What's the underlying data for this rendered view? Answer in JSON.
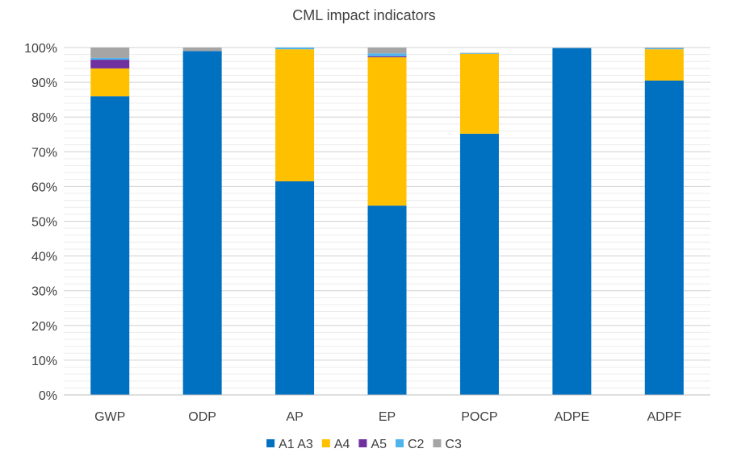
{
  "chart_data": {
    "type": "bar",
    "stacked": true,
    "title": "CML impact indicators",
    "xlabel": "",
    "ylabel": "",
    "ylim": [
      0,
      100
    ],
    "y_tick_labels": [
      "0%",
      "10%",
      "20%",
      "30%",
      "40%",
      "50%",
      "60%",
      "70%",
      "80%",
      "90%",
      "100%"
    ],
    "grid": true,
    "legend_position": "bottom",
    "categories": [
      "GWP",
      "ODP",
      "AP",
      "EP",
      "POCP",
      "ADPE",
      "ADPF"
    ],
    "series": [
      {
        "name": "A1  A3",
        "color": "#0070C0",
        "values": [
          86.0,
          99.0,
          61.5,
          54.5,
          75.2,
          99.8,
          90.5
        ]
      },
      {
        "name": "A4",
        "color": "#FFC000",
        "values": [
          8.0,
          0.0,
          38.0,
          42.7,
          23.0,
          0.0,
          9.0
        ]
      },
      {
        "name": "A5",
        "color": "#7030A0",
        "values": [
          2.5,
          0.0,
          0.0,
          0.3,
          0.0,
          0.0,
          0.0
        ]
      },
      {
        "name": "C2",
        "color": "#4FB3EE",
        "values": [
          0.5,
          0.0,
          0.5,
          0.8,
          0.2,
          0.1,
          0.3
        ]
      },
      {
        "name": "C3",
        "color": "#A5A5A5",
        "values": [
          3.0,
          1.0,
          0.0,
          1.7,
          0.1,
          0.1,
          0.2
        ]
      }
    ]
  }
}
